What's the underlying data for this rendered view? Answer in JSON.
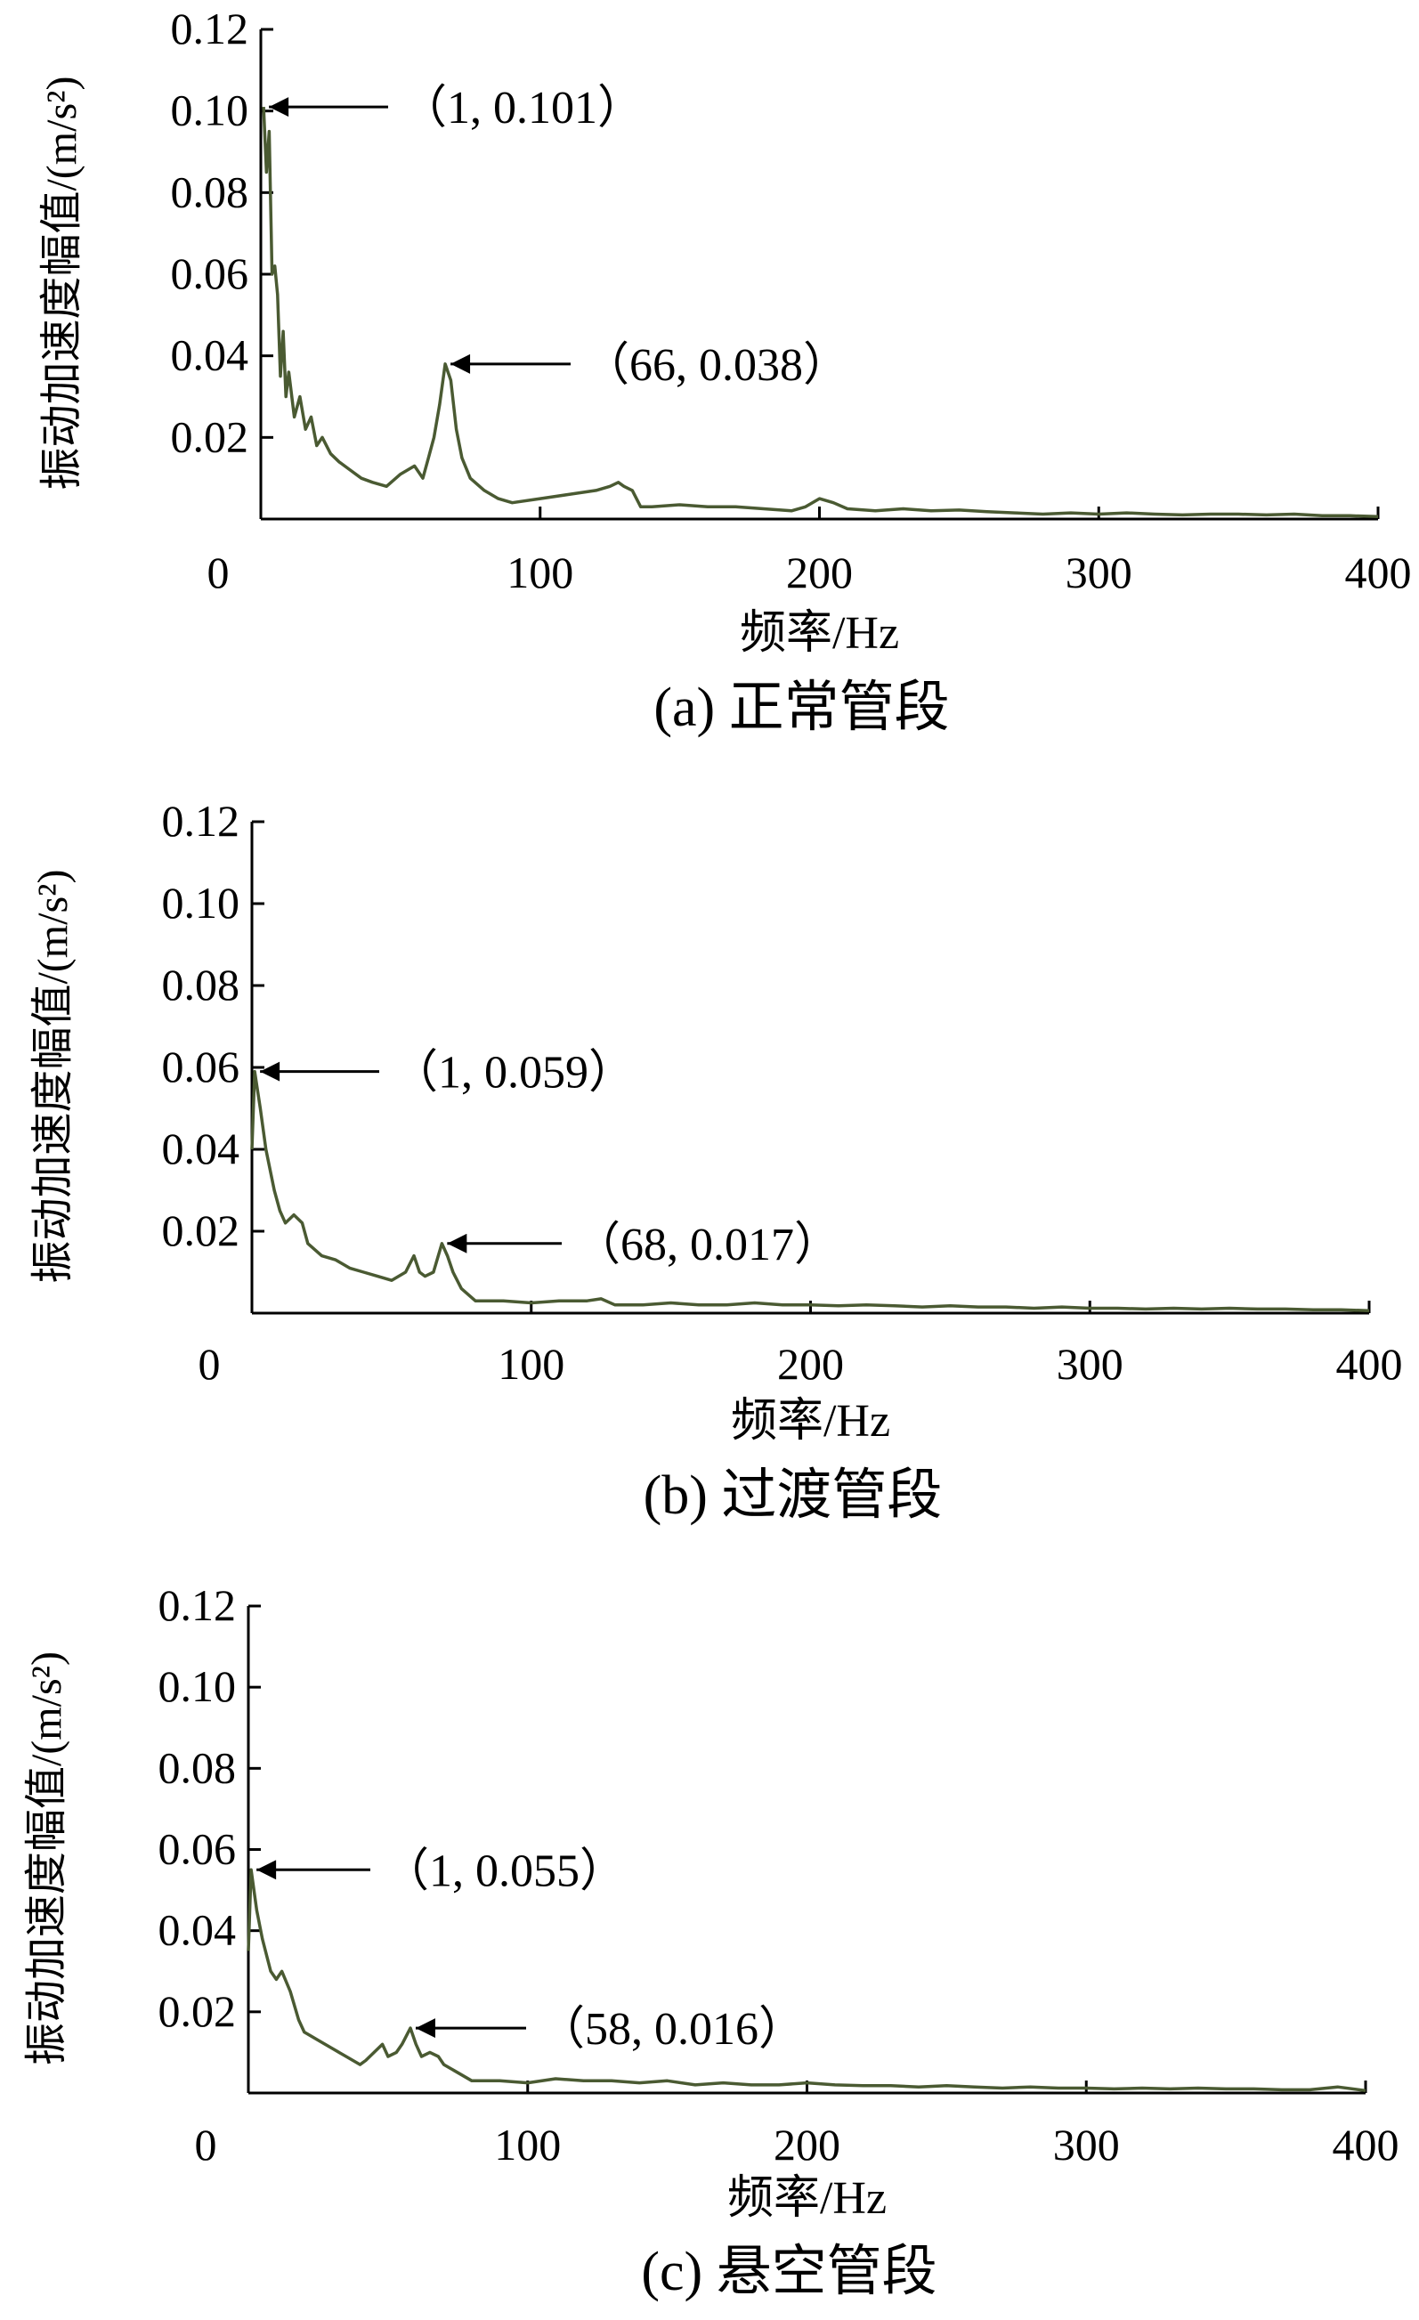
{
  "colors": {
    "line": "#4a5a32",
    "axis": "#000000"
  },
  "chart_data": [
    {
      "type": "line",
      "caption": "(a)  正常管段",
      "xlabel": "频率/Hz",
      "ylabel": "振动加速度幅值/(m/s²)",
      "xlim": [
        0,
        400
      ],
      "ylim": [
        0,
        0.12
      ],
      "xticks": [
        "0",
        "100",
        "200",
        "300",
        "400"
      ],
      "yticks": [
        "0.02",
        "0.04",
        "0.06",
        "0.08",
        "0.10",
        "0.12"
      ],
      "grid": false,
      "series": [
        {
          "x": [
            1,
            2,
            3,
            4,
            5,
            6,
            7,
            8,
            9,
            10,
            12,
            14,
            16,
            18,
            20,
            22,
            25,
            28,
            32,
            36,
            40,
            45,
            50,
            55,
            58,
            60,
            62,
            64,
            66,
            68,
            70,
            72,
            75,
            80,
            85,
            90,
            100,
            110,
            120,
            125,
            128,
            130,
            133,
            136,
            140,
            150,
            160,
            170,
            180,
            190,
            195,
            200,
            205,
            210,
            220,
            230,
            240,
            250,
            260,
            270,
            280,
            290,
            300,
            310,
            320,
            330,
            340,
            350,
            360,
            370,
            380,
            390,
            400
          ],
          "y": [
            0.101,
            0.085,
            0.095,
            0.06,
            0.062,
            0.055,
            0.035,
            0.046,
            0.03,
            0.036,
            0.025,
            0.03,
            0.022,
            0.025,
            0.018,
            0.02,
            0.016,
            0.014,
            0.012,
            0.01,
            0.009,
            0.008,
            0.011,
            0.013,
            0.01,
            0.015,
            0.02,
            0.028,
            0.038,
            0.034,
            0.022,
            0.015,
            0.01,
            0.007,
            0.005,
            0.004,
            0.005,
            0.006,
            0.007,
            0.008,
            0.009,
            0.008,
            0.007,
            0.003,
            0.003,
            0.0035,
            0.003,
            0.003,
            0.0025,
            0.002,
            0.003,
            0.005,
            0.004,
            0.0025,
            0.002,
            0.0025,
            0.002,
            0.0022,
            0.0018,
            0.0015,
            0.0012,
            0.0015,
            0.0012,
            0.0015,
            0.0012,
            0.001,
            0.0012,
            0.0012,
            0.001,
            0.0012,
            0.0008,
            0.0008,
            0.0006
          ]
        }
      ],
      "annotations": [
        {
          "text": "（1, 0.101）",
          "x": 1,
          "y": 0.101
        },
        {
          "text": "（66, 0.038）",
          "x": 66,
          "y": 0.038
        }
      ]
    },
    {
      "type": "line",
      "caption": "(b)  过渡管段",
      "xlabel": "频率/Hz",
      "ylabel": "振动加速度幅值/(m/s²)",
      "xlim": [
        0,
        400
      ],
      "ylim": [
        0,
        0.12
      ],
      "xticks": [
        "0",
        "100",
        "200",
        "300",
        "400"
      ],
      "yticks": [
        "0.02",
        "0.04",
        "0.06",
        "0.08",
        "0.10",
        "0.12"
      ],
      "grid": false,
      "series": [
        {
          "x": [
            0,
            1,
            3,
            5,
            8,
            10,
            12,
            15,
            18,
            20,
            25,
            30,
            35,
            40,
            45,
            50,
            55,
            58,
            60,
            62,
            65,
            68,
            70,
            72,
            75,
            80,
            90,
            100,
            110,
            120,
            125,
            130,
            140,
            150,
            160,
            170,
            180,
            190,
            200,
            210,
            220,
            230,
            240,
            250,
            260,
            270,
            280,
            290,
            300,
            310,
            320,
            330,
            340,
            350,
            360,
            370,
            380,
            390,
            400
          ],
          "y": [
            0.04,
            0.059,
            0.05,
            0.04,
            0.03,
            0.025,
            0.022,
            0.024,
            0.022,
            0.017,
            0.014,
            0.013,
            0.011,
            0.01,
            0.009,
            0.008,
            0.01,
            0.014,
            0.01,
            0.009,
            0.01,
            0.017,
            0.014,
            0.01,
            0.006,
            0.003,
            0.003,
            0.0025,
            0.003,
            0.003,
            0.0035,
            0.002,
            0.002,
            0.0025,
            0.002,
            0.002,
            0.0025,
            0.002,
            0.002,
            0.0018,
            0.002,
            0.0018,
            0.0015,
            0.0018,
            0.0015,
            0.0015,
            0.0012,
            0.0015,
            0.0012,
            0.0012,
            0.001,
            0.0012,
            0.001,
            0.0012,
            0.001,
            0.001,
            0.0008,
            0.0008,
            0.0006
          ]
        }
      ],
      "annotations": [
        {
          "text": "（1, 0.059）",
          "x": 1,
          "y": 0.059
        },
        {
          "text": "（68, 0.017）",
          "x": 68,
          "y": 0.017
        }
      ]
    },
    {
      "type": "line",
      "caption": "(c)  悬空管段",
      "xlabel": "频率/Hz",
      "ylabel": "振动加速度幅值/(m/s²)",
      "xlim": [
        0,
        400
      ],
      "ylim": [
        0,
        0.12
      ],
      "xticks": [
        "0",
        "100",
        "200",
        "300",
        "400"
      ],
      "yticks": [
        "0.02",
        "0.04",
        "0.06",
        "0.08",
        "0.10",
        "0.12"
      ],
      "grid": false,
      "series": [
        {
          "x": [
            0,
            1,
            3,
            5,
            8,
            10,
            12,
            15,
            18,
            20,
            25,
            30,
            35,
            40,
            42,
            45,
            48,
            50,
            53,
            55,
            58,
            60,
            62,
            65,
            68,
            70,
            75,
            80,
            90,
            100,
            110,
            120,
            130,
            140,
            150,
            160,
            170,
            180,
            190,
            200,
            210,
            220,
            230,
            240,
            250,
            260,
            270,
            280,
            290,
            300,
            310,
            320,
            330,
            340,
            350,
            360,
            370,
            380,
            390,
            400
          ],
          "y": [
            0.035,
            0.055,
            0.045,
            0.038,
            0.03,
            0.028,
            0.03,
            0.025,
            0.018,
            0.015,
            0.013,
            0.011,
            0.009,
            0.007,
            0.008,
            0.01,
            0.012,
            0.009,
            0.01,
            0.012,
            0.016,
            0.012,
            0.009,
            0.01,
            0.009,
            0.007,
            0.005,
            0.003,
            0.003,
            0.0025,
            0.0035,
            0.003,
            0.003,
            0.0025,
            0.003,
            0.002,
            0.0025,
            0.002,
            0.002,
            0.0025,
            0.002,
            0.0018,
            0.0018,
            0.0015,
            0.0018,
            0.0015,
            0.0012,
            0.0015,
            0.0012,
            0.0012,
            0.001,
            0.0012,
            0.001,
            0.0012,
            0.001,
            0.001,
            0.0008,
            0.0008,
            0.0015,
            0.0006
          ]
        }
      ],
      "annotations": [
        {
          "text": "（1, 0.055）",
          "x": 1,
          "y": 0.055
        },
        {
          "text": "（58, 0.016）",
          "x": 58,
          "y": 0.016
        }
      ]
    }
  ]
}
